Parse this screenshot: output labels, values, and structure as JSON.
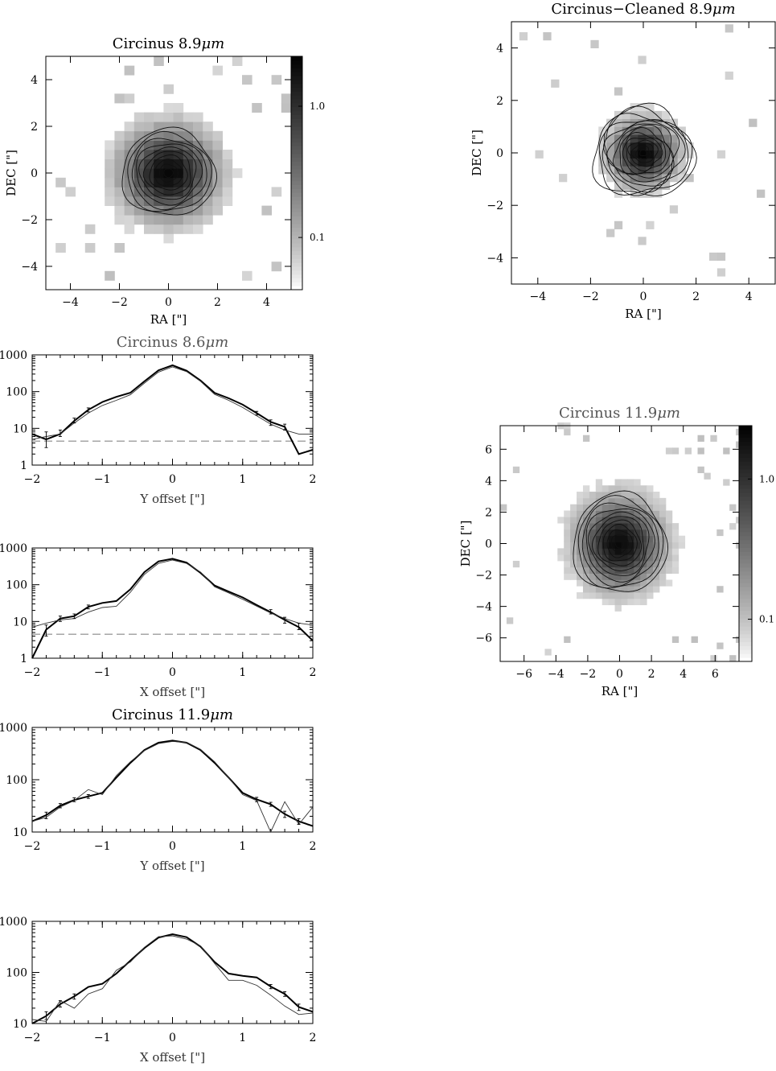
{
  "chart_data": [
    {
      "id": "img1",
      "type": "heatmap",
      "title": "Circinus 8.9",
      "title_unit": "μm",
      "xlabel": "RA [\"]",
      "ylabel": "DEC [\"]",
      "xlim": [
        -5,
        5
      ],
      "ylim": [
        -5,
        5
      ],
      "xticks": [
        -4,
        -2,
        0,
        2,
        4
      ],
      "yticks": [
        -4,
        -2,
        0,
        2,
        4
      ],
      "colorbar": {
        "scale": "log",
        "range": [
          0.04,
          2.4
        ],
        "ticks": [
          1.0,
          0.1
        ],
        "tick_labels": [
          "1.0",
          "0.1"
        ]
      },
      "contour_levels": 10,
      "source_center": [
        0,
        0
      ]
    },
    {
      "id": "img2",
      "type": "heatmap",
      "title": "Circinus−Cleaned 8.9",
      "title_unit": "μm",
      "xlabel": "RA [\"]",
      "ylabel": "DEC [\"]",
      "xlim": [
        -5,
        5
      ],
      "ylim": [
        -5,
        5
      ],
      "xticks": [
        -4,
        -2,
        0,
        2,
        4
      ],
      "yticks": [
        -4,
        -2,
        0,
        2,
        4
      ],
      "source_center": [
        0,
        0
      ]
    },
    {
      "id": "img3",
      "type": "heatmap",
      "title": "Circinus 11.9",
      "title_unit": "μm",
      "xlabel": "RA [\"]",
      "ylabel": "DEC [\"]",
      "xlim": [
        -7.5,
        7.5
      ],
      "ylim": [
        -7.5,
        7.5
      ],
      "xticks": [
        -6,
        -4,
        -2,
        0,
        2,
        4,
        6
      ],
      "yticks": [
        -6,
        -4,
        -2,
        0,
        2,
        4,
        6
      ],
      "colorbar": {
        "scale": "log",
        "range": [
          0.05,
          2.4
        ],
        "ticks": [
          1.0,
          0.1
        ],
        "tick_labels": [
          "1.0",
          "0.1"
        ]
      },
      "source_center": [
        0,
        0
      ]
    },
    {
      "id": "p1",
      "type": "line",
      "title": "Circinus 8.6",
      "title_unit": "μm",
      "xlabel": "Y offset [\"]",
      "ylabel": "",
      "xlim": [
        -2,
        2
      ],
      "ylim": [
        1,
        1000
      ],
      "yscale": "log",
      "xticks": [
        -2,
        -1,
        0,
        1,
        2
      ],
      "yticks": [
        1,
        10,
        100,
        1000
      ],
      "x": [
        -2.0,
        -1.8,
        -1.6,
        -1.4,
        -1.2,
        -1.0,
        -0.8,
        -0.6,
        -0.4,
        -0.2,
        0.0,
        0.2,
        0.4,
        0.6,
        0.8,
        1.0,
        1.2,
        1.4,
        1.6,
        1.8,
        2.0
      ],
      "series": [
        {
          "style": "thick",
          "values": [
            7,
            5,
            7,
            16,
            32,
            52,
            72,
            93,
            190,
            380,
            520,
            370,
            200,
            92,
            66,
            44,
            26,
            15,
            11,
            2,
            2.6
          ]
        },
        {
          "style": "thin",
          "values": [
            5,
            6,
            7,
            14,
            26,
            42,
            58,
            82,
            170,
            340,
            470,
            350,
            190,
            84,
            58,
            37,
            22,
            13,
            9,
            7,
            7
          ]
        }
      ],
      "error_bars": [
        [
          -1.8,
          3,
          8
        ],
        [
          -1.6,
          6,
          9
        ],
        [
          -1.4,
          14,
          19
        ],
        [
          -1.2,
          28,
          36
        ],
        [
          1.2,
          23,
          29
        ],
        [
          1.4,
          12,
          17
        ],
        [
          1.6,
          9,
          13
        ]
      ],
      "background_level": 4.5
    },
    {
      "id": "p2",
      "type": "line",
      "title": "",
      "xlabel": "X offset [\"]",
      "ylabel": "",
      "xlim": [
        -2,
        2
      ],
      "ylim": [
        1,
        1000
      ],
      "yscale": "log",
      "xticks": [
        -2,
        -1,
        0,
        1,
        2
      ],
      "yticks": [
        1,
        10,
        100,
        1000
      ],
      "x": [
        -2.0,
        -1.8,
        -1.6,
        -1.4,
        -1.2,
        -1.0,
        -0.8,
        -0.6,
        -0.4,
        -0.2,
        0.0,
        0.2,
        0.4,
        0.6,
        0.8,
        1.0,
        1.2,
        1.4,
        1.6,
        1.8,
        2.0
      ],
      "series": [
        {
          "style": "thick",
          "values": [
            1,
            6,
            12,
            14,
            25,
            32,
            36,
            75,
            220,
            430,
            510,
            400,
            210,
            95,
            65,
            45,
            28,
            18,
            11,
            7,
            3
          ]
        },
        {
          "style": "thin",
          "values": [
            7,
            9,
            11,
            12,
            18,
            24,
            26,
            62,
            190,
            380,
            470,
            380,
            220,
            88,
            60,
            40,
            26,
            17,
            12,
            9,
            8
          ]
        }
      ],
      "error_bars": [
        [
          -1.8,
          4,
          8
        ],
        [
          -1.6,
          10,
          14
        ],
        [
          -1.4,
          12,
          16
        ],
        [
          -1.2,
          22,
          28
        ],
        [
          1.4,
          16,
          21
        ],
        [
          1.6,
          9,
          13
        ],
        [
          1.8,
          6,
          9
        ]
      ],
      "background_level": 4.5
    },
    {
      "id": "p3",
      "type": "line",
      "title": "Circinus 11.9",
      "title_unit": "μm",
      "xlabel": "Y offset [\"]",
      "ylabel": "",
      "xlim": [
        -2,
        2
      ],
      "ylim": [
        10,
        1000
      ],
      "yscale": "log",
      "xticks": [
        -2,
        -1,
        0,
        1,
        2
      ],
      "yticks": [
        10,
        100,
        1000
      ],
      "x": [
        -2.0,
        -1.8,
        -1.6,
        -1.4,
        -1.2,
        -1.0,
        -0.8,
        -0.6,
        -0.4,
        -0.2,
        0.0,
        0.2,
        0.4,
        0.6,
        0.8,
        1.0,
        1.2,
        1.4,
        1.6,
        1.8,
        2.0
      ],
      "series": [
        {
          "style": "thick",
          "values": [
            16,
            21,
            32,
            41,
            48,
            56,
            110,
            210,
            370,
            510,
            560,
            510,
            370,
            210,
            110,
            56,
            42,
            34,
            22,
            16,
            13
          ]
        },
        {
          "style": "thin",
          "values": [
            16,
            19,
            30,
            40,
            65,
            52,
            120,
            220,
            360,
            490,
            540,
            520,
            380,
            220,
            110,
            52,
            40,
            10,
            38,
            14,
            30
          ]
        }
      ],
      "error_bars": [
        [
          -1.8,
          18,
          24
        ],
        [
          -1.6,
          29,
          35
        ],
        [
          -1.4,
          38,
          45
        ],
        [
          -1.2,
          44,
          52
        ],
        [
          1.2,
          38,
          46
        ],
        [
          1.4,
          31,
          37
        ],
        [
          1.6,
          19,
          25
        ],
        [
          1.8,
          14,
          18
        ]
      ]
    },
    {
      "id": "p4",
      "type": "line",
      "title": "",
      "xlabel": "X offset [\"]",
      "ylabel": "",
      "xlim": [
        -2,
        2
      ],
      "ylim": [
        10,
        1000
      ],
      "yscale": "log",
      "xticks": [
        -2,
        -1,
        0,
        1,
        2
      ],
      "yticks": [
        10,
        100,
        1000
      ],
      "x": [
        -2.0,
        -1.8,
        -1.6,
        -1.4,
        -1.2,
        -1.0,
        -0.8,
        -0.6,
        -0.4,
        -0.2,
        0.0,
        0.2,
        0.4,
        0.6,
        0.8,
        1.0,
        1.2,
        1.4,
        1.6,
        1.8,
        2.0
      ],
      "series": [
        {
          "style": "thick",
          "values": [
            10,
            14,
            24,
            34,
            52,
            60,
            95,
            170,
            300,
            480,
            560,
            490,
            320,
            160,
            95,
            86,
            80,
            53,
            38,
            21,
            17
          ]
        },
        {
          "style": "thin",
          "values": [
            12,
            11,
            28,
            20,
            38,
            48,
            110,
            160,
            310,
            500,
            520,
            450,
            330,
            150,
            70,
            70,
            56,
            36,
            22,
            15,
            16
          ]
        }
      ],
      "error_bars": [
        [
          -1.8,
          12,
          17
        ],
        [
          -1.6,
          21,
          28
        ],
        [
          -1.4,
          30,
          38
        ],
        [
          1.4,
          48,
          58
        ],
        [
          1.6,
          34,
          42
        ],
        [
          1.8,
          18,
          24
        ]
      ]
    }
  ]
}
